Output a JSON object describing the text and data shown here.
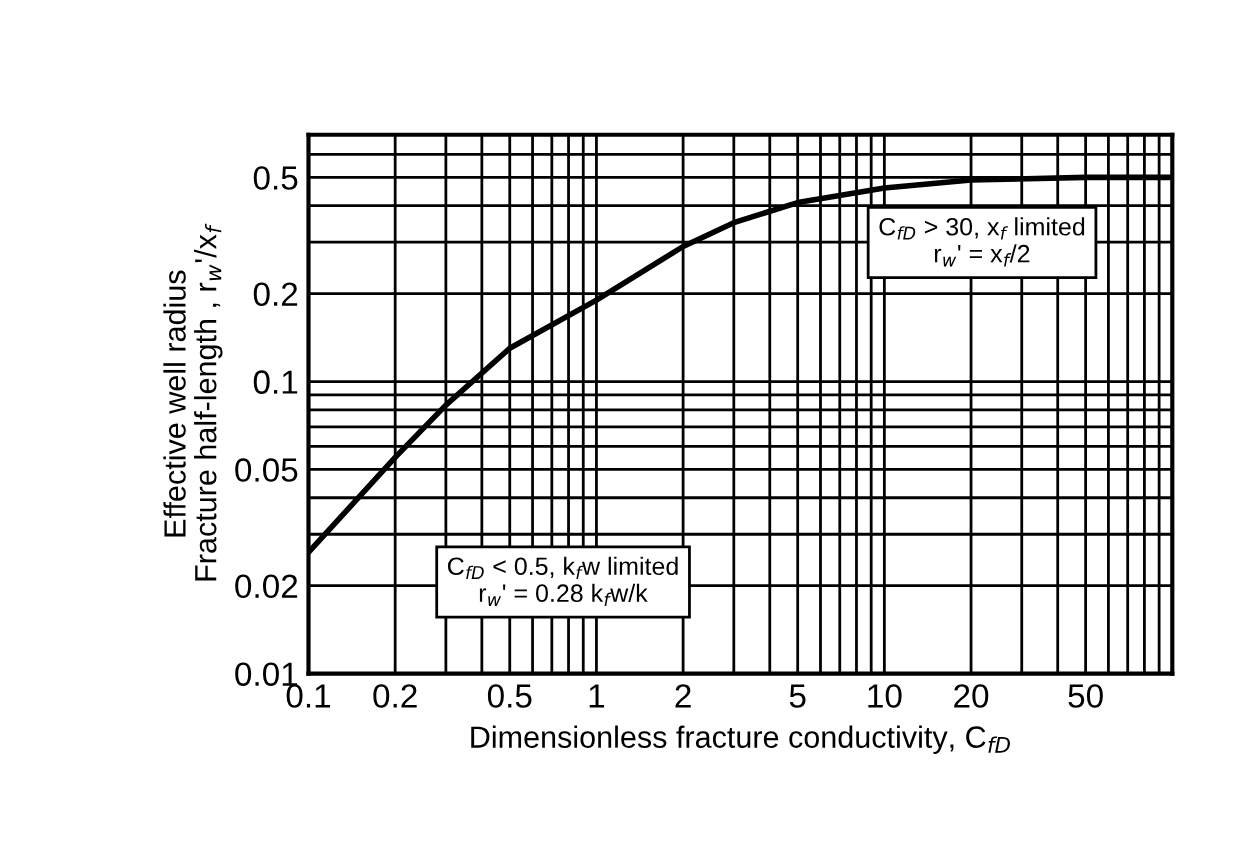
{
  "chart_data": {
    "type": "line",
    "xlabel": "Dimensionless fracture conductivity, C$_{fD}$",
    "ylabel": "Effective well radius\nFracture half-length , r$_{w}$'/x$_{f}$",
    "x": [
      0.1,
      0.2,
      0.3,
      0.5,
      1,
      2,
      3,
      5,
      10,
      20,
      50,
      100
    ],
    "series": [
      {
        "color": "#000000",
        "values": [
          0.026,
          0.055,
          0.083,
          0.13,
          0.19,
          0.29,
          0.35,
          0.41,
          0.46,
          0.49,
          0.5,
          0.5
        ]
      }
    ],
    "log": "xy",
    "xlim": [
      0.1,
      100
    ],
    "ylim": [
      0.01,
      0.7
    ],
    "xticks": [
      0.1,
      0.2,
      {
        "value": 0.3,
        "label": null
      },
      {
        "value": 0.4,
        "label": null
      },
      0.5,
      {
        "value": 0.6,
        "label": null
      },
      {
        "value": 0.7,
        "label": null
      },
      {
        "value": 0.8,
        "label": null
      },
      {
        "value": 0.9,
        "label": null
      },
      1,
      2,
      {
        "value": 3,
        "label": null
      },
      {
        "value": 4,
        "label": null
      },
      5,
      {
        "value": 6,
        "label": null
      },
      {
        "value": 7,
        "label": null
      },
      {
        "value": 8,
        "label": null
      },
      {
        "value": 9,
        "label": null
      },
      10,
      20,
      {
        "value": 30,
        "label": null
      },
      {
        "value": 40,
        "label": null
      },
      50,
      {
        "value": 60,
        "label": null
      },
      {
        "value": 70,
        "label": null
      },
      {
        "value": 80,
        "label": null
      },
      {
        "value": 90,
        "label": null
      }
    ],
    "yticks": [
      0.01,
      0.02,
      {
        "value": 0.03,
        "label": null
      },
      {
        "value": 0.04,
        "label": null
      },
      0.05,
      {
        "value": 0.06,
        "label": null
      },
      {
        "value": 0.07,
        "label": null
      },
      {
        "value": 0.08,
        "label": null
      },
      {
        "value": 0.09,
        "label": null
      },
      0.1,
      0.2,
      {
        "value": 0.3,
        "label": null
      },
      {
        "value": 0.4,
        "label": null
      },
      0.5,
      {
        "value": 0.6,
        "label": null
      }
    ],
    "grid": true,
    "line_style": "solid",
    "marker": "none",
    "annotations": [
      "C$_{fD}$ < 0.5, k$_{f}$w limited\nr$_{w}$' = 0.28 k$_{f}$w/k",
      "C$_{fD}$ > 30, x$_{f}$ limited\nr$_{w}$' = x$_{f}$/2"
    ]
  }
}
